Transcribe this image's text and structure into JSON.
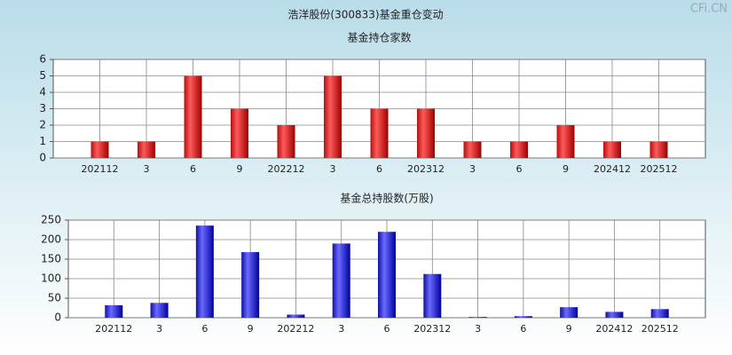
{
  "title": "浩洋股份(300833)基金重仓变动",
  "watermark": "CFi.CN",
  "chart_data": [
    {
      "type": "bar",
      "title": "基金持仓家数",
      "categories": [
        "202112",
        "3",
        "6",
        "9",
        "202212",
        "3",
        "6",
        "202312",
        "3",
        "6",
        "9",
        "202412",
        "202512"
      ],
      "values": [
        1,
        1,
        5,
        3,
        2,
        5,
        3,
        3,
        1,
        1,
        2,
        1,
        1
      ],
      "color": "red",
      "ylim": [
        0,
        6
      ],
      "yticks": [
        0,
        1,
        2,
        3,
        4,
        5,
        6
      ],
      "grid": true
    },
    {
      "type": "bar",
      "title": "基金总持股数(万股)",
      "categories": [
        "202112",
        "3",
        "6",
        "9",
        "202212",
        "3",
        "6",
        "202312",
        "3",
        "6",
        "9",
        "202412",
        "202512"
      ],
      "values": [
        32,
        38,
        236,
        168,
        8,
        190,
        220,
        112,
        2,
        4,
        27,
        15,
        22
      ],
      "color": "blue",
      "ylim": [
        0,
        250
      ],
      "yticks": [
        0,
        50,
        100,
        150,
        200,
        250
      ],
      "grid": true
    }
  ]
}
